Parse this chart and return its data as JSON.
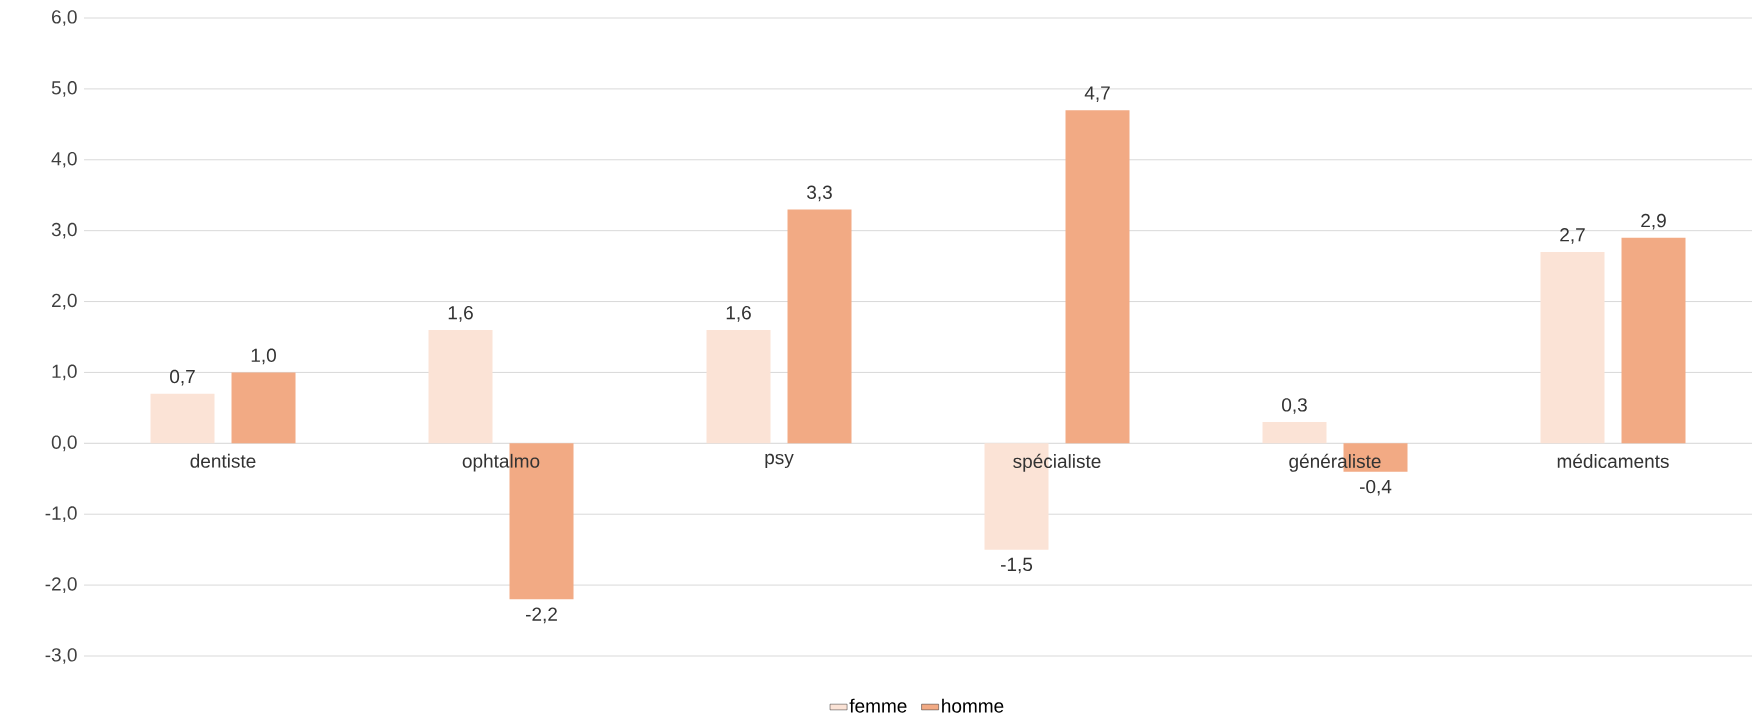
{
  "chart_data": {
    "type": "bar",
    "categories": [
      "dentiste",
      "ophtalmo",
      "psy",
      "spécialiste",
      "généraliste",
      "médicaments"
    ],
    "series": [
      {
        "name": "femme",
        "color": "#fbe3d6",
        "values": [
          0.7,
          1.6,
          1.6,
          -1.5,
          0.3,
          2.7
        ],
        "value_labels": [
          "0,7",
          "1,6",
          "1,6",
          "-1,5",
          "0,3",
          "2,7"
        ]
      },
      {
        "name": "homme",
        "color": "#f2aa84",
        "values": [
          1.0,
          -2.2,
          3.3,
          4.7,
          -0.4,
          2.9
        ],
        "value_labels": [
          "1,0",
          "-2,2",
          "3,3",
          "4,7",
          "-0,4",
          "2,9"
        ]
      }
    ],
    "ylim": [
      -3,
      6
    ],
    "yticks": [
      {
        "value": -3,
        "label": "-3,0"
      },
      {
        "value": -2,
        "label": "-2,0"
      },
      {
        "value": -1,
        "label": "-1,0"
      },
      {
        "value": 0,
        "label": "0,0"
      },
      {
        "value": 1,
        "label": "1,0"
      },
      {
        "value": 2,
        "label": "2,0"
      },
      {
        "value": 3,
        "label": "3,0"
      },
      {
        "value": 4,
        "label": "4,0"
      },
      {
        "value": 5,
        "label": "5,0"
      },
      {
        "value": 6,
        "label": "6,0"
      }
    ],
    "grid": "y",
    "legend": "bottom"
  }
}
